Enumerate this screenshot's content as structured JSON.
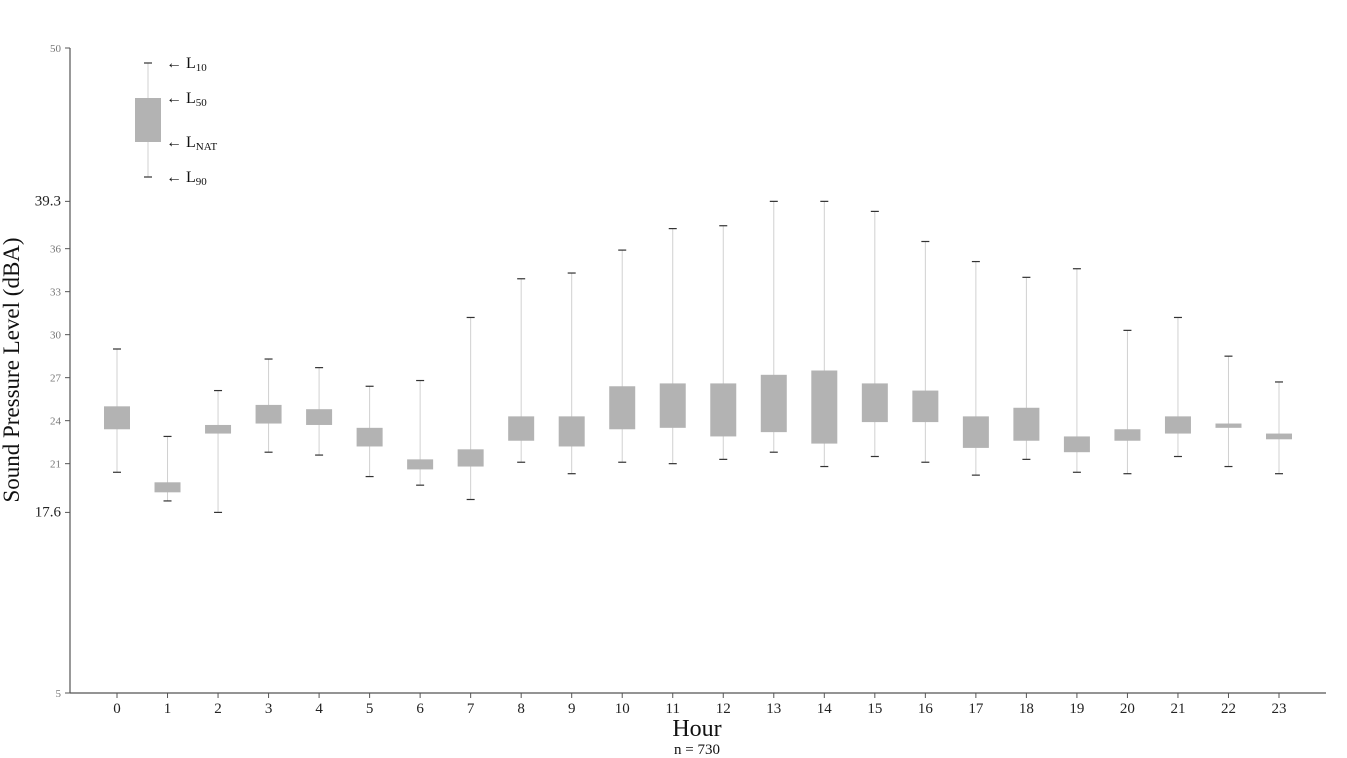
{
  "chart_data": {
    "type": "box",
    "title": "",
    "xlabel": "Hour",
    "ylabel": "Sound Pressure Level (dBA)",
    "note": "n = 730",
    "ylim": [
      5,
      50
    ],
    "yticks": [
      {
        "value": 50,
        "label": "50",
        "emphasis": false
      },
      {
        "value": 39.3,
        "label": "39.3",
        "emphasis": true
      },
      {
        "value": 36,
        "label": "36",
        "emphasis": false
      },
      {
        "value": 33,
        "label": "33",
        "emphasis": false
      },
      {
        "value": 30,
        "label": "30",
        "emphasis": false
      },
      {
        "value": 27,
        "label": "27",
        "emphasis": false
      },
      {
        "value": 24,
        "label": "24",
        "emphasis": false
      },
      {
        "value": 21,
        "label": "21",
        "emphasis": false
      },
      {
        "value": 17.6,
        "label": "17.6",
        "emphasis": true
      },
      {
        "value": 5,
        "label": "5",
        "emphasis": false
      }
    ],
    "legend": {
      "placement": "top-left",
      "items": [
        {
          "base": "L",
          "sub": "10",
          "stat": "L10"
        },
        {
          "base": "L",
          "sub": "50",
          "stat": "L50"
        },
        {
          "base": "L",
          "sub": "NAT",
          "stat": "LNAT"
        },
        {
          "base": "L",
          "sub": "90",
          "stat": "L90"
        }
      ],
      "arrow": "←"
    },
    "colors": {
      "box": "#b3b3b3",
      "whisker": "#d0d0d0",
      "axis": "#555555"
    },
    "categories": [
      "0",
      "1",
      "2",
      "3",
      "4",
      "5",
      "6",
      "7",
      "8",
      "9",
      "10",
      "11",
      "12",
      "13",
      "14",
      "15",
      "16",
      "17",
      "18",
      "19",
      "20",
      "21",
      "22",
      "23"
    ],
    "series": [
      {
        "name": "L10",
        "values": [
          29.0,
          22.9,
          26.1,
          28.3,
          27.7,
          26.4,
          26.8,
          31.2,
          33.9,
          34.3,
          35.9,
          37.4,
          37.6,
          39.3,
          39.3,
          38.6,
          36.5,
          35.1,
          34.0,
          34.6,
          30.3,
          31.2,
          28.5,
          26.7
        ]
      },
      {
        "name": "L50",
        "values": [
          25.0,
          19.7,
          23.7,
          25.1,
          24.8,
          23.5,
          21.3,
          22.0,
          24.3,
          24.3,
          26.4,
          26.6,
          26.6,
          27.2,
          27.5,
          26.6,
          26.1,
          24.3,
          24.9,
          22.9,
          23.4,
          24.3,
          23.8,
          23.1
        ]
      },
      {
        "name": "LNAT",
        "values": [
          23.4,
          19.0,
          23.1,
          23.8,
          23.7,
          22.2,
          20.6,
          20.8,
          22.6,
          22.2,
          23.4,
          23.5,
          22.9,
          23.2,
          22.4,
          23.9,
          23.9,
          22.1,
          22.6,
          21.8,
          22.6,
          23.1,
          23.5,
          22.7
        ]
      },
      {
        "name": "L90",
        "values": [
          20.4,
          18.4,
          17.6,
          21.8,
          21.6,
          20.1,
          19.5,
          18.5,
          21.1,
          20.3,
          21.1,
          21.0,
          21.3,
          21.8,
          20.8,
          21.5,
          21.1,
          20.2,
          21.3,
          20.4,
          20.3,
          21.5,
          20.8,
          20.3
        ]
      }
    ]
  }
}
